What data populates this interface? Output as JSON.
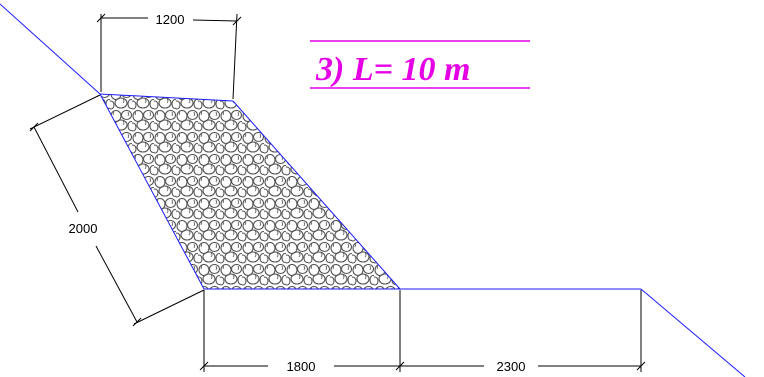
{
  "title": "3)  L= 10 m",
  "dimensions": {
    "top_width": "1200",
    "slope_length": "2000",
    "base_width": "1800",
    "right_offset": "2300"
  },
  "colors": {
    "title": "#e600e6",
    "slope_line": "#1a1aff",
    "dimension_line": "#000000",
    "fill_stone": "#555555"
  }
}
